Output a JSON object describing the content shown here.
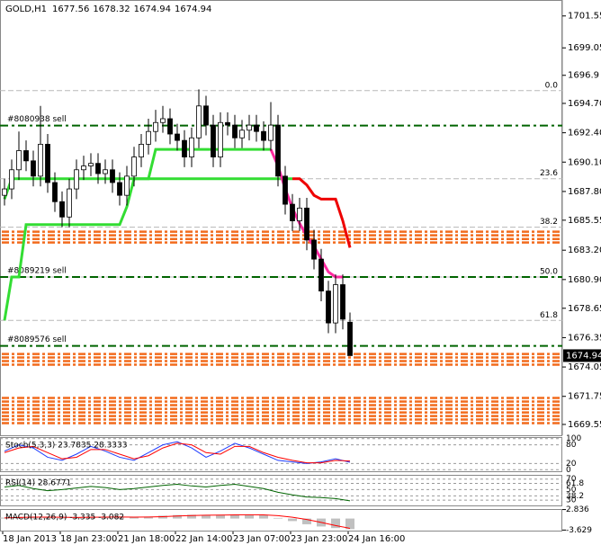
{
  "chart_data": [
    {
      "type": "candlestick",
      "title": "GOLD,H1",
      "header_values": [
        1677.56,
        1678.32,
        1674.94,
        1674.94
      ],
      "categories": [
        "18 Jan 2013",
        null,
        null,
        null,
        null,
        null,
        null,
        null,
        "18 Jan 23:00",
        null,
        null,
        null,
        null,
        null,
        null,
        null,
        "21 Jan 18:00",
        null,
        null,
        null,
        null,
        null,
        null,
        null,
        "22 Jan 14:00",
        null,
        null,
        null,
        null,
        null,
        null,
        null,
        "23 Jan 07:00",
        null,
        null,
        null,
        null,
        null,
        null,
        null,
        "23 Jan 23:00",
        null,
        null,
        null,
        null,
        null,
        null,
        null,
        "24 Jan 16:00"
      ],
      "open": [
        1687.5,
        1688.0,
        1689.5,
        1691.0,
        1690.2,
        1689.0,
        1691.5,
        1688.5,
        1687.0,
        1685.8,
        1688.0,
        1689.5,
        1689.8,
        1690.0,
        1689.2,
        1689.5,
        1688.5,
        1687.5,
        1689.0,
        1690.5,
        1691.5,
        1692.5,
        1693.2,
        1693.5,
        1692.3,
        1691.8,
        1690.5,
        1692.0,
        1694.5,
        1693.0,
        1690.5,
        1693.2,
        1693.0,
        1692.0,
        1692.6,
        1693.0,
        1692.5,
        1691.8,
        1693.0,
        1689.0,
        1686.8,
        1685.5,
        1686.5,
        1684.0,
        1682.5,
        1680.0,
        1677.5,
        1680.5,
        1677.56
      ],
      "high": [
        1688.8,
        1690.3,
        1692.5,
        1691.8,
        1691.0,
        1694.5,
        1692.3,
        1689.3,
        1687.8,
        1688.8,
        1690.3,
        1690.6,
        1690.8,
        1690.8,
        1690.3,
        1690.3,
        1689.3,
        1689.8,
        1691.3,
        1692.3,
        1693.5,
        1694.2,
        1694.5,
        1694.3,
        1693.1,
        1692.6,
        1692.8,
        1695.8,
        1695.3,
        1693.8,
        1694.0,
        1694.0,
        1693.8,
        1693.4,
        1693.8,
        1693.8,
        1693.3,
        1694.8,
        1693.8,
        1689.8,
        1687.6,
        1687.3,
        1687.3,
        1684.8,
        1683.3,
        1680.8,
        1681.3,
        1681.3,
        1678.32
      ],
      "low": [
        1686.7,
        1687.2,
        1688.7,
        1689.4,
        1688.2,
        1688.2,
        1687.7,
        1686.2,
        1685.0,
        1685.0,
        1687.2,
        1688.7,
        1689.0,
        1688.4,
        1688.4,
        1687.7,
        1686.7,
        1686.7,
        1688.2,
        1689.7,
        1690.7,
        1691.7,
        1692.4,
        1691.5,
        1691.0,
        1689.7,
        1689.7,
        1691.2,
        1692.2,
        1689.7,
        1689.7,
        1692.2,
        1691.2,
        1691.2,
        1691.8,
        1691.7,
        1691.0,
        1691.0,
        1688.2,
        1686.0,
        1684.7,
        1684.7,
        1683.2,
        1681.7,
        1679.2,
        1676.7,
        1676.7,
        1677.0,
        1674.94
      ],
      "close": [
        1688.0,
        1689.5,
        1691.0,
        1690.2,
        1689.0,
        1691.5,
        1688.5,
        1687.0,
        1685.8,
        1688.0,
        1689.5,
        1689.8,
        1690.0,
        1689.2,
        1689.5,
        1688.5,
        1687.5,
        1689.0,
        1690.5,
        1691.5,
        1692.5,
        1693.2,
        1693.5,
        1692.3,
        1691.8,
        1690.5,
        1692.0,
        1694.5,
        1693.0,
        1690.5,
        1693.2,
        1693.0,
        1692.0,
        1692.6,
        1693.0,
        1692.5,
        1691.8,
        1693.0,
        1689.0,
        1686.8,
        1685.5,
        1686.5,
        1684.0,
        1682.5,
        1680.0,
        1677.5,
        1680.5,
        1677.8,
        1674.94
      ],
      "color": "#000000",
      "ylim": [
        1668.7,
        1702.8
      ],
      "yticks": [
        1701.55,
        1699.05,
        1696.9,
        {
          "value": 1694.7,
          "label": "1694.70"
        },
        {
          "value": 1692.4,
          "label": "1692.40"
        },
        {
          "value": 1690.1,
          "label": "1690.10"
        },
        {
          "value": 1687.8,
          "label": "1687.80"
        },
        1685.55,
        {
          "value": 1683.2,
          "label": "1683.20"
        },
        {
          "value": 1680.9,
          "label": "1680.90"
        },
        1678.65,
        1676.35,
        1674.05,
        1671.75,
        1669.55
      ],
      "current_price": 1674.94,
      "lines": [
        {
          "color": "#33dd33",
          "values": [
            1687.2,
            1688.8,
            1688.8,
            1688.8,
            1688.8,
            1688.8,
            1688.8,
            1688.8,
            1688.8,
            1688.8,
            1688.8,
            1688.8,
            1688.8,
            1688.8,
            1688.8,
            1688.8,
            1688.8,
            1688.8,
            1688.8,
            1688.8,
            1688.8,
            1691.1,
            1691.1,
            1691.1,
            1691.1,
            1691.1,
            1691.1,
            1691.1,
            1691.1,
            1691.1,
            1691.1,
            1691.1,
            1691.1,
            1691.1,
            1691.1,
            1691.1,
            1691.1,
            1691.1,
            null,
            null,
            null,
            null,
            null,
            null,
            null,
            null,
            null,
            null,
            null
          ]
        },
        {
          "color": "#33dd33",
          "values": [
            1677.7,
            1681.1,
            1681.1,
            1685.2,
            1685.2,
            1685.2,
            1685.2,
            1685.2,
            1685.2,
            1685.2,
            1685.2,
            1685.2,
            1685.2,
            1685.2,
            1685.2,
            1685.2,
            1685.2,
            1686.6,
            1688.8,
            1688.8,
            1688.8,
            1688.8,
            1688.8,
            1688.8,
            1688.8,
            1688.8,
            1688.8,
            1688.8,
            1688.8,
            1688.8,
            1688.8,
            1688.8,
            1688.8,
            1688.8,
            1688.8,
            1688.8,
            1688.8,
            1688.8,
            1688.8,
            1688.8,
            1688.8,
            null,
            null,
            null,
            null,
            null,
            null,
            null,
            null
          ]
        },
        {
          "color": "#ff2aa0",
          "values": [
            null,
            null,
            null,
            null,
            null,
            null,
            null,
            null,
            null,
            null,
            null,
            null,
            null,
            null,
            null,
            null,
            null,
            null,
            null,
            null,
            null,
            null,
            null,
            null,
            null,
            null,
            null,
            null,
            null,
            null,
            null,
            null,
            null,
            null,
            null,
            null,
            null,
            1691.1,
            1689.8,
            1688.0,
            1686.5,
            1685.3,
            1684.3,
            1683.5,
            1682.5,
            1681.5,
            1681.1,
            1681.1,
            null
          ]
        },
        {
          "color": "#ee0000",
          "values": [
            null,
            null,
            null,
            null,
            null,
            null,
            null,
            null,
            null,
            null,
            null,
            null,
            null,
            null,
            null,
            null,
            null,
            null,
            null,
            null,
            null,
            null,
            null,
            null,
            null,
            null,
            null,
            null,
            null,
            null,
            null,
            null,
            null,
            null,
            null,
            null,
            null,
            null,
            null,
            null,
            1688.8,
            1688.8,
            1688.3,
            1687.5,
            1687.2,
            1687.2,
            1687.2,
            1685.5,
            1683.4
          ]
        }
      ],
      "fib_levels": [
        {
          "label": "0.0",
          "value": 1695.7
        },
        {
          "label": "23.6",
          "value": 1688.8
        },
        {
          "label": "38.2",
          "value": 1685.0
        },
        {
          "label": "50.0",
          "value": 1681.1
        },
        {
          "label": "61.8",
          "value": 1677.7
        }
      ],
      "orders": [
        {
          "label": "#8080938 sell",
          "value": 1692.96
        },
        {
          "label": "#8089219 sell",
          "value": 1681.1
        },
        {
          "label": "#8089576 sell",
          "value": 1675.7
        }
      ],
      "order_color": "#006400",
      "pending_levels": [
        1684.65,
        1684.37,
        1684.08,
        1683.8,
        1675.07,
        1674.79,
        1674.51,
        1674.23,
        1671.62,
        1671.34,
        1671.06,
        1670.77,
        1670.49,
        1670.21,
        1669.93,
        1669.65
      ],
      "pending_color": "#f26b1d"
    },
    {
      "type": "line",
      "title": "Stoch(5,3,3) 23.7835 28.3333",
      "ylim": [
        -5,
        105
      ],
      "yticks": [
        0,
        20,
        80,
        100
      ],
      "grid": true,
      "series": [
        {
          "color": "#1e3cff",
          "values": [
            60,
            80,
            70,
            40,
            30,
            50,
            75,
            60,
            40,
            30,
            55,
            80,
            90,
            70,
            40,
            60,
            85,
            70,
            50,
            30,
            25,
            20,
            25,
            35,
            24
          ]
        },
        {
          "color": "#ff0000",
          "values": [
            55,
            70,
            75,
            55,
            35,
            40,
            65,
            65,
            50,
            35,
            45,
            70,
            85,
            80,
            55,
            50,
            75,
            75,
            55,
            40,
            30,
            22,
            22,
            30,
            28
          ]
        }
      ]
    },
    {
      "type": "line",
      "title": "RSI(14) 28.6771",
      "ylim": [
        20,
        78
      ],
      "yticks": [
        30,
        38.2,
        50,
        61.8,
        70
      ],
      "grid": true,
      "series": [
        {
          "color": "#006400",
          "values": [
            55,
            58,
            52,
            48,
            50,
            53,
            56,
            54,
            50,
            52,
            55,
            58,
            60,
            57,
            55,
            58,
            60,
            56,
            52,
            45,
            40,
            36,
            35,
            33,
            28.68
          ]
        }
      ]
    },
    {
      "type": "bar",
      "title": "MACD(12,26,9) -3.335 -3.082",
      "ylim": [
        -3.8,
        3.0
      ],
      "yticks": [
        2.836,
        -3.629
      ],
      "color": "#c0c0c0",
      "values": [
        0.3,
        0.5,
        0.6,
        0.4,
        0.2,
        0.3,
        0.5,
        0.6,
        0.5,
        0.4,
        0.6,
        0.9,
        1.1,
        1.2,
        1.1,
        1.2,
        1.3,
        1.2,
        1.0,
        0.2,
        -0.8,
        -1.8,
        -2.5,
        -3.0,
        -3.335
      ],
      "series": [
        {
          "color": "#ff0000",
          "values": [
            0.2,
            0.35,
            0.45,
            0.45,
            0.4,
            0.35,
            0.4,
            0.45,
            0.5,
            0.45,
            0.5,
            0.6,
            0.8,
            0.95,
            1.05,
            1.1,
            1.15,
            1.2,
            1.15,
            0.9,
            0.4,
            -0.3,
            -1.2,
            -2.2,
            -3.082
          ]
        }
      ]
    }
  ]
}
